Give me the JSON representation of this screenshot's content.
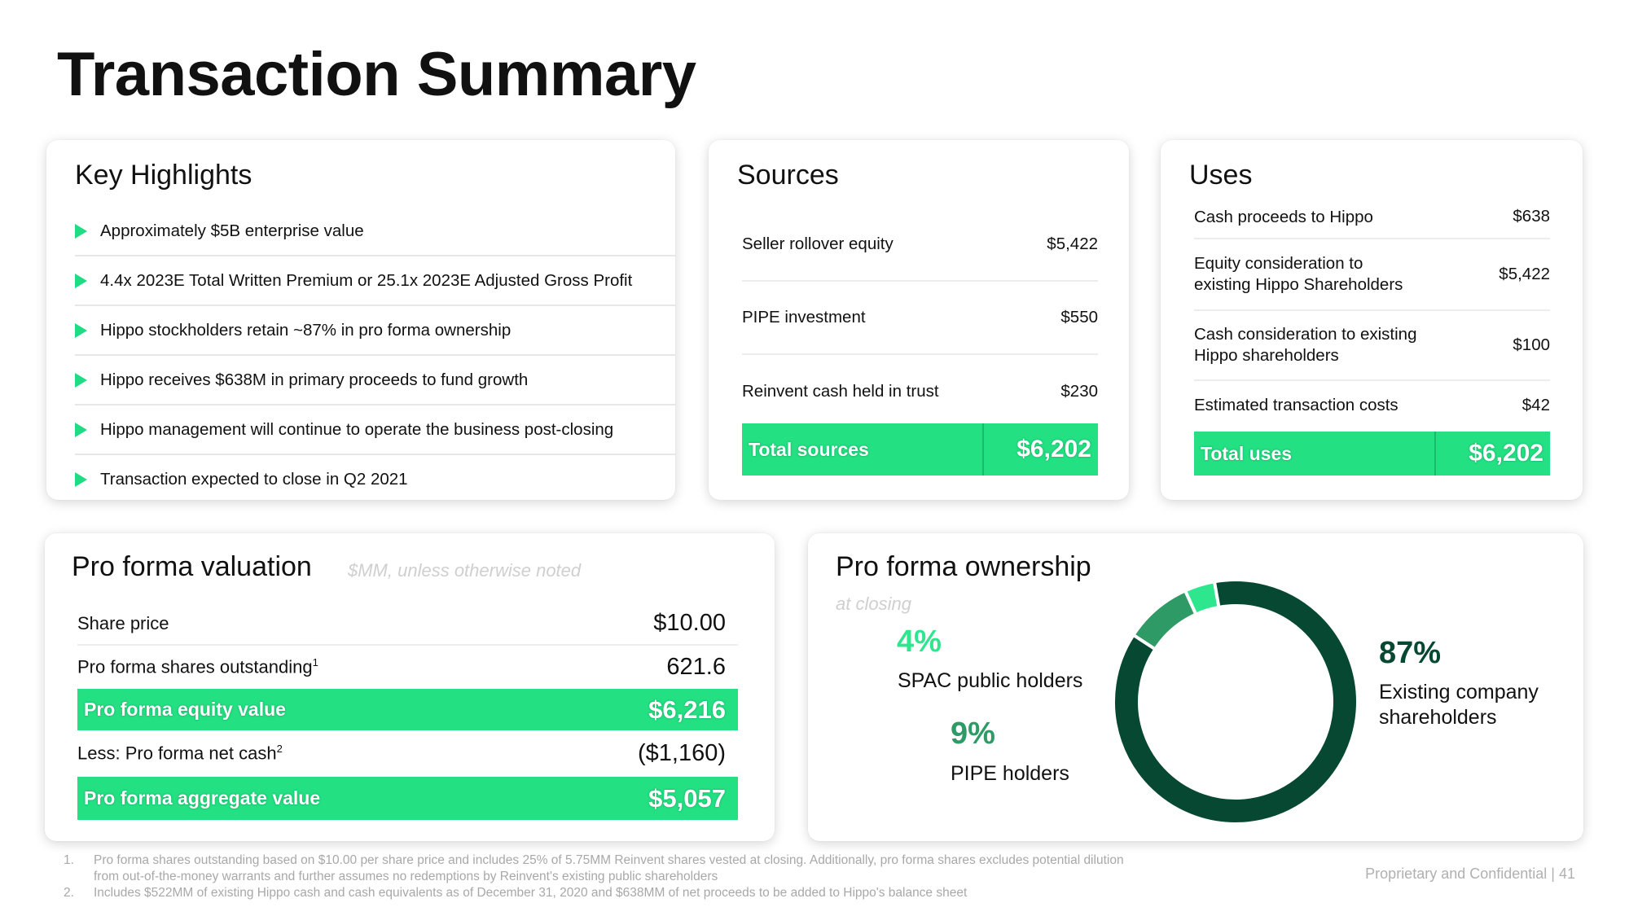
{
  "page_title": "Transaction Summary",
  "highlights": {
    "title": "Key Highlights",
    "items": [
      "Approximately $5B enterprise value",
      "4.4x 2023E Total Written Premium or 25.1x 2023E Adjusted Gross Profit",
      "Hippo stockholders retain ~87% in pro forma ownership",
      "Hippo receives $638M in primary proceeds to fund growth",
      "Hippo management will continue to operate the business post-closing",
      "Transaction expected to close in Q2 2021"
    ]
  },
  "sources": {
    "title": "Sources",
    "rows": [
      {
        "label": "Seller rollover equity",
        "value": "$5,422"
      },
      {
        "label": "PIPE investment",
        "value": "$550"
      },
      {
        "label": "Reinvent cash held in trust",
        "value": "$230"
      }
    ],
    "total_label": "Total sources",
    "total_value": "$6,202"
  },
  "uses": {
    "title": "Uses",
    "rows": [
      {
        "label_lines": [
          "Cash proceeds to Hippo"
        ],
        "value": "$638"
      },
      {
        "label_lines": [
          "Equity consideration to",
          "existing Hippo Shareholders"
        ],
        "value": "$5,422"
      },
      {
        "label_lines": [
          "Cash consideration to existing",
          "Hippo shareholders"
        ],
        "value": "$100"
      },
      {
        "label_lines": [
          "Estimated transaction costs"
        ],
        "value": "$42"
      }
    ],
    "total_label": "Total uses",
    "total_value": "$6,202"
  },
  "valuation": {
    "title": "Pro forma valuation",
    "note": "$MM, unless otherwise noted",
    "share_price_label": "Share price",
    "share_price_value": "$10.00",
    "shares_outstanding_label": "Pro forma shares outstanding",
    "shares_outstanding_sup": "1",
    "shares_outstanding_value": "621.6",
    "equity_value_label": "Pro forma equity value",
    "equity_value_value": "$6,216",
    "net_cash_label": "Less: Pro forma net cash",
    "net_cash_sup": "2",
    "net_cash_value": "($1,160)",
    "aggregate_value_label": "Pro forma aggregate value",
    "aggregate_value_value": "$5,057"
  },
  "ownership": {
    "title": "Pro forma ownership",
    "subtitle": "at closing",
    "segments": [
      {
        "pct_label": "4%",
        "value": 4,
        "name_lines": [
          "SPAC public holders"
        ],
        "color": "#2de68e"
      },
      {
        "pct_label": "9%",
        "value": 9,
        "name_lines": [
          "PIPE holders"
        ],
        "color": "#2e9a65"
      },
      {
        "pct_label": "87%",
        "value": 87,
        "name_lines": [
          "Existing company",
          "shareholders"
        ],
        "color": "#074832"
      }
    ]
  },
  "footnotes": [
    {
      "num": "1.",
      "lines": [
        "Pro forma shares outstanding based on $10.00 per share price and includes 25% of 5.75MM Reinvent shares vested at closing. Additionally, pro forma shares excludes potential dilution",
        "from out-of-the-money warrants and further assumes no redemptions by Reinvent's existing public shareholders"
      ]
    },
    {
      "num": "2.",
      "lines": [
        "Includes $522MM of existing Hippo cash and cash equivalents as of December 31, 2020 and $638MM of net proceeds to be added to Hippo's balance sheet"
      ]
    }
  ],
  "confidential": "Proprietary and Confidential | 41"
}
